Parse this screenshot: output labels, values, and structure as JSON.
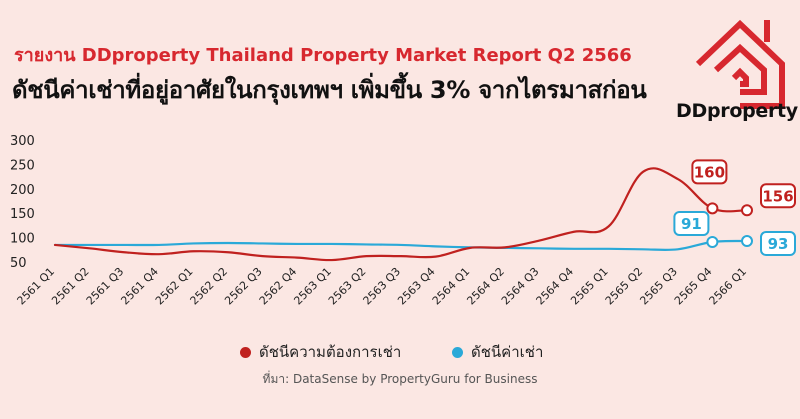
{
  "report_label": "รายงาน DDproperty Thailand Property Market Report Q2 2566",
  "headline": "ดัชนีค่าเช่าที่อยู่อาศัยในกรุงเทพฯ เพิ่มขึ้น 3% จากไตรมาสก่อน",
  "brand": {
    "name": "DDproperty",
    "color": "#d7282f"
  },
  "source": "ที่มา: DataSense by PropertyGuru for Business",
  "colors": {
    "background": "#fbe7e3",
    "demand": "#c0211f",
    "rent": "#2aa9d8"
  },
  "chart_data": {
    "type": "line",
    "title": "",
    "xlabel": "",
    "ylabel": "",
    "ylim": [
      50,
      300
    ],
    "yticks": [
      50,
      100,
      150,
      200,
      250,
      300
    ],
    "grid": false,
    "legend_position": "bottom",
    "categories": [
      "2561 Q1",
      "2561 Q2",
      "2561 Q3",
      "2561 Q4",
      "2562 Q1",
      "2562 Q2",
      "2562 Q3",
      "2562 Q4",
      "2563 Q1",
      "2563 Q2",
      "2563 Q3",
      "2563 Q4",
      "2564 Q1",
      "2564 Q2",
      "2564 Q3",
      "2564 Q4",
      "2565 Q1",
      "2565 Q2",
      "2565 Q3",
      "2565 Q4",
      "2566 Q1"
    ],
    "series": [
      {
        "name": "ดัชนีความต้องการเช่า",
        "values": [
          85,
          78,
          70,
          66,
          72,
          70,
          62,
          59,
          54,
          62,
          62,
          61,
          79,
          80,
          94,
          112,
          123,
          235,
          220,
          160,
          156
        ],
        "labels": [
          {
            "index": 19,
            "text": "160"
          },
          {
            "index": 20,
            "text": "156"
          }
        ]
      },
      {
        "name": "ดัชนีค่าเช่า",
        "values": [
          85,
          85,
          85,
          85,
          88,
          89,
          88,
          87,
          87,
          86,
          85,
          82,
          80,
          79,
          78,
          77,
          77,
          76,
          76,
          91,
          93
        ],
        "labels": [
          {
            "index": 19,
            "text": "91"
          },
          {
            "index": 20,
            "text": "93"
          }
        ]
      }
    ]
  }
}
